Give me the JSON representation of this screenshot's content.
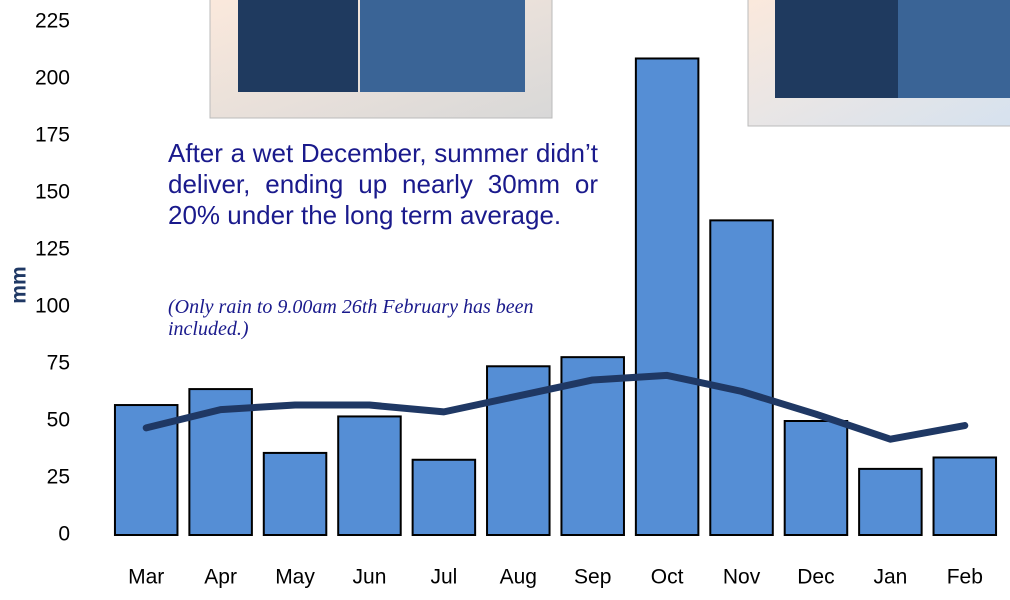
{
  "chart_data": {
    "type": "bar",
    "y_axis_label": "mm",
    "annotations": [
      "After a wet December, summer didn’t deliver, ending up nearly 30mm or 20% under the long term average.",
      "(Only rain to 9.00am 26th February has been included.)"
    ],
    "categories": [
      "Mar",
      "Apr",
      "May",
      "Jun",
      "Jul",
      "Aug",
      "Sep",
      "Oct",
      "Nov",
      "Dec",
      "Jan",
      "Feb"
    ],
    "series": [
      {
        "type": "bar",
        "color": "#558ed5",
        "values": [
          57,
          64,
          36,
          52,
          33,
          74,
          78,
          209,
          138,
          50,
          29,
          34
        ]
      },
      {
        "type": "line",
        "color": "#1f3864",
        "values": [
          47,
          55,
          57,
          57,
          54,
          61,
          68,
          70,
          63,
          53,
          42,
          48
        ]
      }
    ],
    "ylim": [
      0,
      225
    ],
    "yticks": [
      0,
      25,
      50,
      75,
      100,
      125,
      150,
      175,
      200,
      225
    ],
    "grid": false
  }
}
